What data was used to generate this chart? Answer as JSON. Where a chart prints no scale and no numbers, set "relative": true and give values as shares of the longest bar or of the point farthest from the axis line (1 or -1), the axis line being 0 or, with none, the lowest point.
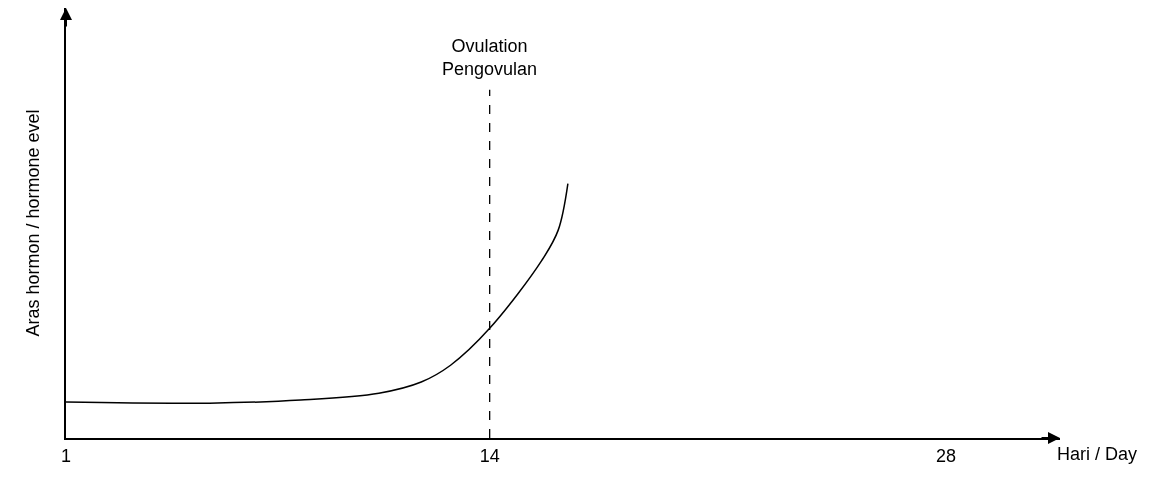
{
  "chart_data": {
    "type": "line",
    "relative": true,
    "ylabel": "Aras hormon / hormone evel",
    "xlabel": "Hari / Day",
    "xlim": [
      1,
      31.5
    ],
    "xticks": [
      1,
      14,
      28
    ],
    "legend": false,
    "marker": "none",
    "line_style": "solid",
    "series": [
      {
        "color": "#000000",
        "x": [
          1,
          5.4,
          8.2,
          10.6,
          11.9,
          12.8,
          14,
          15.6,
          16.1,
          16.4
        ],
        "values": [
          0.141,
          0.137,
          0.149,
          0.176,
          0.22,
          0.286,
          0.431,
          0.698,
          0.816,
          1
        ]
      }
    ],
    "ref_lines": [
      {
        "axis": "x",
        "value": 14,
        "label": "Ovulation\nPengovulan",
        "color": "#000000",
        "line_style": "dashed"
      }
    ]
  }
}
